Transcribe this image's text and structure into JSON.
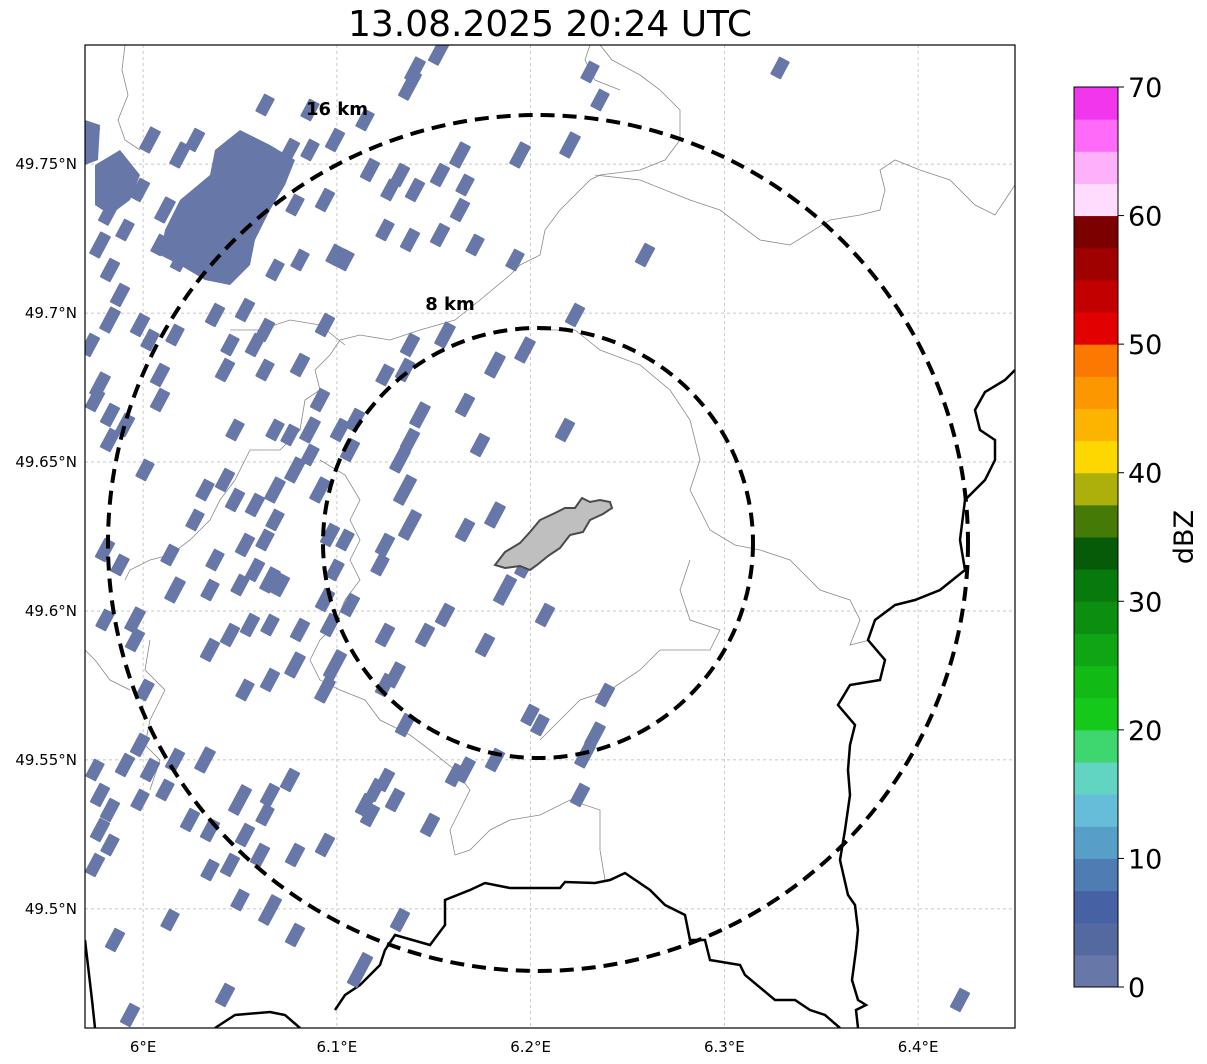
{
  "title": "13.08.2025 20:24 UTC",
  "map": {
    "lon_range": [
      5.97,
      6.45
    ],
    "lat_range": [
      49.46,
      49.79
    ],
    "x_ticks": [
      {
        "value": 6.0,
        "label": "6°E"
      },
      {
        "value": 6.1,
        "label": "6.1°E"
      },
      {
        "value": 6.2,
        "label": "6.2°E"
      },
      {
        "value": 6.3,
        "label": "6.3°E"
      },
      {
        "value": 6.4,
        "label": "6.4°E"
      }
    ],
    "y_ticks": [
      {
        "value": 49.5,
        "label": "49.5°N"
      },
      {
        "value": 49.55,
        "label": "49.55°N"
      },
      {
        "value": 49.6,
        "label": "49.6°N"
      },
      {
        "value": 49.65,
        "label": "49.65°N"
      },
      {
        "value": 49.7,
        "label": "49.7°N"
      },
      {
        "value": 49.75,
        "label": "49.75°N"
      }
    ],
    "grid": true,
    "rings": [
      {
        "radius_km": 8,
        "label": "8 km"
      },
      {
        "radius_km": 16,
        "label": "16 km"
      }
    ],
    "echo_color": "#6677a8"
  },
  "colorbar": {
    "label": "dBZ",
    "min": 0,
    "max": 70,
    "ticks": [
      0,
      10,
      20,
      30,
      40,
      50,
      60,
      70
    ],
    "colors": [
      "#6677a8",
      "#5469a0",
      "#4662a4",
      "#4f7cb2",
      "#579fc9",
      "#65bdd9",
      "#61d4c2",
      "#3dd66f",
      "#14c91a",
      "#12ba16",
      "#0fa514",
      "#0c8f10",
      "#08790c",
      "#065b09",
      "#467a06",
      "#adb00a",
      "#fed600",
      "#fdb400",
      "#fd9700",
      "#fd7800",
      "#e30000",
      "#c30000",
      "#9f0000",
      "#7d0000",
      "#ffdcfe",
      "#ffb0fb",
      "#ff6af9",
      "#f236ee"
    ]
  }
}
